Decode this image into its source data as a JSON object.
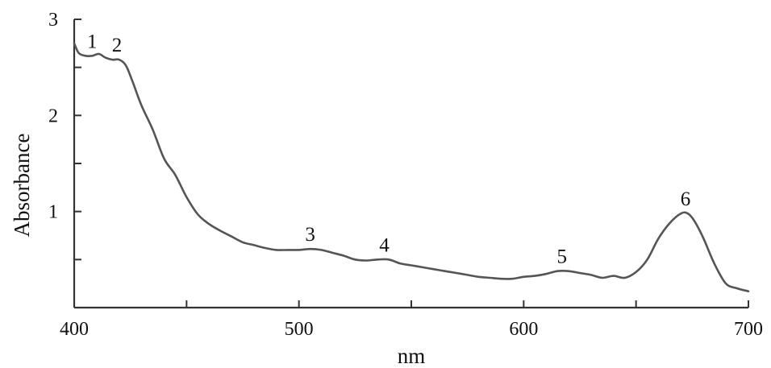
{
  "chart_data": {
    "type": "line",
    "title": "",
    "xlabel": "nm",
    "ylabel": "Absorbance",
    "xlim": [
      400,
      700
    ],
    "ylim": [
      0,
      3
    ],
    "x_ticks": [
      400,
      500,
      600,
      700
    ],
    "x_minor_ticks": [
      450,
      550,
      650
    ],
    "y_ticks": [
      1,
      2,
      3
    ],
    "y_minor_ticks": [
      0.5,
      1.5,
      2.5
    ],
    "grid": false,
    "colors": {
      "line": "#555555",
      "axis": "#333333",
      "text": "#111111"
    },
    "series": [
      {
        "x": [
          400,
          402,
          405,
          408,
          411,
          414,
          417,
          420,
          423,
          426,
          430,
          435,
          440,
          445,
          450,
          455,
          460,
          465,
          470,
          475,
          480,
          485,
          490,
          495,
          500,
          505,
          510,
          515,
          520,
          525,
          530,
          535,
          540,
          545,
          550,
          555,
          560,
          565,
          570,
          575,
          580,
          585,
          590,
          595,
          600,
          605,
          610,
          615,
          620,
          625,
          630,
          635,
          640,
          645,
          650,
          655,
          660,
          665,
          670,
          673,
          676,
          680,
          685,
          690,
          695,
          700
        ],
        "y": [
          2.75,
          2.65,
          2.62,
          2.62,
          2.64,
          2.6,
          2.58,
          2.58,
          2.52,
          2.35,
          2.1,
          1.85,
          1.55,
          1.38,
          1.15,
          0.97,
          0.87,
          0.8,
          0.74,
          0.68,
          0.65,
          0.62,
          0.6,
          0.6,
          0.6,
          0.61,
          0.6,
          0.57,
          0.54,
          0.5,
          0.49,
          0.5,
          0.5,
          0.46,
          0.44,
          0.42,
          0.4,
          0.38,
          0.36,
          0.34,
          0.32,
          0.31,
          0.3,
          0.3,
          0.32,
          0.33,
          0.35,
          0.38,
          0.38,
          0.36,
          0.34,
          0.31,
          0.33,
          0.31,
          0.37,
          0.5,
          0.72,
          0.88,
          0.98,
          0.98,
          0.9,
          0.72,
          0.45,
          0.25,
          0.2,
          0.17
        ]
      }
    ],
    "annotations": [
      {
        "text": "1",
        "x": 408,
        "y": 2.62
      },
      {
        "text": "2",
        "x": 419,
        "y": 2.58
      },
      {
        "text": "3",
        "x": 505,
        "y": 0.61
      },
      {
        "text": "4",
        "x": 538,
        "y": 0.5
      },
      {
        "text": "5",
        "x": 617,
        "y": 0.38
      },
      {
        "text": "6",
        "x": 672,
        "y": 0.98
      }
    ]
  }
}
